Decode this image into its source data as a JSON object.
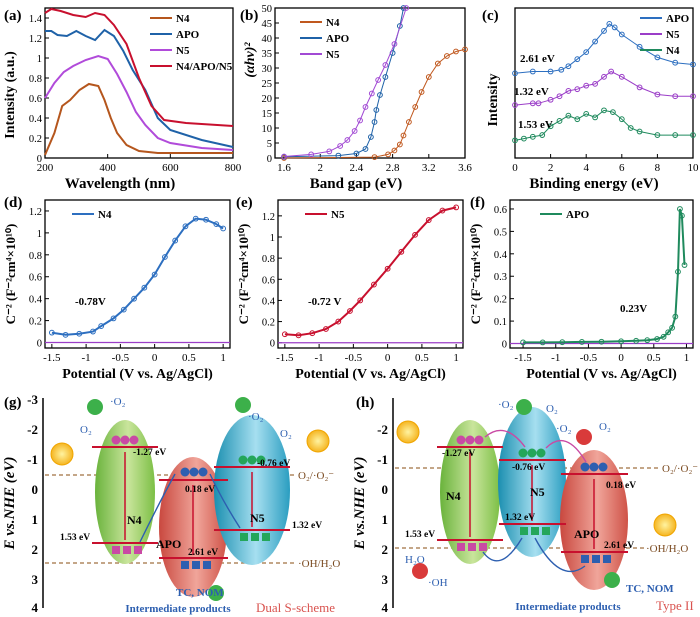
{
  "figure": {
    "panels": {
      "a": {
        "letter": "(a)",
        "xlabel": "Wavelength (nm)",
        "ylabel": "Intensity (a.u.)"
      },
      "b": {
        "letter": "(b)",
        "xlabel": "Band gap (eV)",
        "ylabel": "(αhν)²"
      },
      "c": {
        "letter": "(c)",
        "xlabel": "Binding energy (eV)",
        "ylabel": "Intensity",
        "annotations": [
          "2.61 eV",
          "1.32 eV",
          "1.53 eV"
        ]
      },
      "d": {
        "letter": "(d)",
        "annotation": "-0.78V"
      },
      "e": {
        "letter": "(e)",
        "annotation": "-0.72 V"
      },
      "f": {
        "letter": "(f)",
        "annotation": "0.23V"
      },
      "g": {
        "letter": "(g)",
        "scheme": "Dual S-scheme"
      },
      "h": {
        "letter": "(h)",
        "scheme": "Type II"
      }
    },
    "mott": {
      "ylabel": "C⁻² (F⁻²cm⁴×10¹⁰)",
      "xlabel": "Potential (V vs. Ag/AgCl)"
    },
    "energy": {
      "ylabel": "E vs.NHE (eV)",
      "o2_label": "O₂/·O₂⁻",
      "oh_label": "·OH/H₂O",
      "products": "Intermediate products",
      "pollutants": "TC, NOM"
    },
    "semis": {
      "n4": "N4",
      "n5": "N5",
      "apo": "APO"
    },
    "levels": {
      "n4_cb": "-1.27 eV",
      "n4_vb": "1.53 eV",
      "n5_cb": "-0.76 eV",
      "n5_vb": "1.32 eV",
      "apo_cb": "0.18 eV",
      "apo_vb": "2.61 eV"
    }
  },
  "chart_data": [
    {
      "panel": "a",
      "type": "line",
      "title": "",
      "xlabel": "Wavelength (nm)",
      "ylabel": "Intensity (a.u.)",
      "xlim": [
        200,
        800
      ],
      "ylim": [
        0,
        1.5
      ],
      "xticks": [
        200,
        400,
        600,
        800
      ],
      "yticks": [
        0.0,
        0.2,
        0.4,
        0.6,
        0.8,
        1.0,
        1.2,
        1.4
      ],
      "legend": [
        "N4",
        "APO",
        "N5",
        "N4/APO/N5"
      ],
      "series": [
        {
          "name": "N4",
          "color": "#b5561d",
          "x": [
            200,
            230,
            255,
            280,
            310,
            340,
            370,
            390,
            410,
            430,
            460,
            500,
            560,
            650,
            800
          ],
          "y": [
            0.03,
            0.25,
            0.52,
            0.58,
            0.68,
            0.74,
            0.72,
            0.58,
            0.4,
            0.25,
            0.13,
            0.07,
            0.05,
            0.05,
            0.05
          ]
        },
        {
          "name": "APO",
          "color": "#1f62a8",
          "x": [
            200,
            220,
            240,
            270,
            300,
            330,
            360,
            390,
            420,
            450,
            480,
            520,
            560,
            600,
            700,
            800
          ],
          "y": [
            1.27,
            1.27,
            1.23,
            1.22,
            1.27,
            1.22,
            1.18,
            1.28,
            1.22,
            1.07,
            0.88,
            0.68,
            0.4,
            0.28,
            0.18,
            0.11
          ]
        },
        {
          "name": "N5",
          "color": "#b14bda",
          "x": [
            200,
            230,
            260,
            290,
            330,
            370,
            400,
            430,
            460,
            490,
            520,
            560,
            600,
            700,
            800
          ],
          "y": [
            0.6,
            0.75,
            0.86,
            0.92,
            0.98,
            1.02,
            0.99,
            0.84,
            0.66,
            0.46,
            0.33,
            0.2,
            0.15,
            0.1,
            0.08
          ]
        },
        {
          "name": "N4/APO/N5",
          "color": "#c8102e",
          "x": [
            200,
            220,
            250,
            290,
            330,
            360,
            390,
            420,
            460,
            500,
            540,
            580,
            650,
            800
          ],
          "y": [
            1.45,
            1.49,
            1.47,
            1.43,
            1.41,
            1.45,
            1.43,
            1.33,
            1.14,
            0.8,
            0.52,
            0.38,
            0.35,
            0.32
          ]
        }
      ]
    },
    {
      "panel": "b",
      "type": "scatter",
      "xlabel": "Band gap (eV)",
      "ylabel": "(αhν)²",
      "xlim": [
        1.5,
        3.6
      ],
      "ylim": [
        0,
        50
      ],
      "xticks": [
        1.6,
        2.0,
        2.4,
        2.8,
        3.2,
        3.6
      ],
      "yticks": [
        0,
        5,
        10,
        15,
        20,
        25,
        30,
        35,
        40,
        45,
        50
      ],
      "legend": [
        "N4",
        "APO",
        "N5"
      ],
      "series": [
        {
          "name": "N4",
          "color": "#c0581e",
          "x": [
            1.6,
            2.6,
            2.75,
            2.82,
            2.88,
            2.92,
            2.98,
            3.05,
            3.12,
            3.2,
            3.3,
            3.4,
            3.5,
            3.6
          ],
          "y": [
            0,
            0.3,
            1.2,
            2.5,
            4.5,
            7.5,
            12,
            17,
            22,
            27,
            31.5,
            34,
            35.5,
            36.2
          ]
        },
        {
          "name": "APO",
          "color": "#1f62a8",
          "x": [
            1.6,
            2.2,
            2.4,
            2.5,
            2.56,
            2.6,
            2.62,
            2.66,
            2.72,
            2.8,
            2.88,
            2.92
          ],
          "y": [
            0.4,
            0.8,
            1.5,
            3,
            7,
            12,
            16,
            21,
            27,
            35,
            44,
            50
          ]
        },
        {
          "name": "N5",
          "color": "#a24ad4",
          "x": [
            1.6,
            1.9,
            2.1,
            2.22,
            2.3,
            2.38,
            2.44,
            2.5,
            2.57,
            2.64,
            2.72,
            2.82,
            2.95
          ],
          "y": [
            0.5,
            1.2,
            2.2,
            4,
            6,
            9,
            12.5,
            17,
            21.5,
            26,
            31,
            38,
            50
          ]
        }
      ]
    },
    {
      "panel": "c",
      "type": "scatter",
      "xlabel": "Binding energy (eV)",
      "ylabel": "Intensity",
      "xlim": [
        0,
        10
      ],
      "xticks": [
        0,
        2,
        4,
        6,
        8,
        10
      ],
      "legend": [
        "APO",
        "N5",
        "N4"
      ],
      "series": [
        {
          "name": "APO",
          "color": "#2d6fc0",
          "x": [
            0,
            1,
            2,
            2.6,
            3,
            3.5,
            4,
            4.5,
            5,
            5.3,
            5.6,
            6,
            7,
            8,
            9,
            10
          ],
          "y": [
            0.68,
            0.69,
            0.69,
            0.7,
            0.72,
            0.76,
            0.8,
            0.86,
            0.92,
            0.96,
            0.94,
            0.9,
            0.83,
            0.77,
            0.74,
            0.73
          ]
        },
        {
          "name": "N5",
          "color": "#9b3ec8",
          "x": [
            0,
            1,
            1.32,
            2,
            2.5,
            3,
            3.5,
            4,
            4.5,
            5,
            5.4,
            6,
            7,
            8,
            9,
            10
          ],
          "y": [
            0.5,
            0.51,
            0.51,
            0.53,
            0.55,
            0.58,
            0.59,
            0.61,
            0.62,
            0.66,
            0.69,
            0.66,
            0.6,
            0.56,
            0.55,
            0.55
          ]
        },
        {
          "name": "N4",
          "color": "#1f8a5d",
          "x": [
            0,
            0.5,
            1,
            1.53,
            2,
            2.5,
            3,
            3.5,
            4,
            4.5,
            5,
            5.5,
            6,
            6.5,
            7,
            8,
            9,
            10
          ],
          "y": [
            0.3,
            0.31,
            0.32,
            0.33,
            0.38,
            0.41,
            0.44,
            0.42,
            0.45,
            0.43,
            0.47,
            0.46,
            0.42,
            0.37,
            0.35,
            0.33,
            0.33,
            0.33
          ]
        }
      ]
    },
    {
      "panel": "d",
      "type": "line",
      "legend": [
        "N4"
      ],
      "xlabel": "Potential (V vs. Ag/AgCl)",
      "ylabel": "C⁻² (F⁻²cm⁴×10¹⁰)",
      "xlim": [
        -1.6,
        1.1
      ],
      "ylim": [
        -0.05,
        1.3
      ],
      "xticks": [
        -1.5,
        -1.0,
        -0.5,
        0.0,
        0.5,
        1.0
      ],
      "yticks": [
        0.0,
        0.2,
        0.4,
        0.6,
        0.8,
        1.0,
        1.2
      ],
      "series": [
        {
          "name": "N4",
          "color": "#2d6fc0",
          "x": [
            -1.5,
            -1.3,
            -1.1,
            -0.9,
            -0.78,
            -0.6,
            -0.45,
            -0.3,
            -0.15,
            0.0,
            0.15,
            0.3,
            0.45,
            0.6,
            0.75,
            0.9,
            1.0
          ],
          "y": [
            0.09,
            0.07,
            0.08,
            0.1,
            0.15,
            0.22,
            0.3,
            0.4,
            0.5,
            0.62,
            0.78,
            0.93,
            1.06,
            1.13,
            1.12,
            1.08,
            1.04
          ]
        }
      ]
    },
    {
      "panel": "e",
      "type": "line",
      "legend": [
        "N5"
      ],
      "xlabel": "Potential (V vs. Ag/AgCl)",
      "ylabel": "C⁻² (F⁻²cm⁴×10¹⁰)",
      "xlim": [
        -1.6,
        1.1
      ],
      "ylim": [
        -0.05,
        1.35
      ],
      "xticks": [
        -1.5,
        -1.0,
        -0.5,
        0.0,
        0.5,
        1.0
      ],
      "yticks": [
        0.0,
        0.2,
        0.4,
        0.6,
        0.8,
        1.0,
        1.2
      ],
      "series": [
        {
          "name": "N5",
          "color": "#c8102e",
          "x": [
            -1.5,
            -1.3,
            -1.1,
            -0.9,
            -0.72,
            -0.55,
            -0.4,
            -0.2,
            0.0,
            0.2,
            0.4,
            0.6,
            0.8,
            1.0
          ],
          "y": [
            0.08,
            0.07,
            0.09,
            0.13,
            0.2,
            0.3,
            0.4,
            0.55,
            0.7,
            0.86,
            1.02,
            1.16,
            1.25,
            1.28
          ]
        }
      ]
    },
    {
      "panel": "f",
      "type": "line",
      "legend": [
        "APO"
      ],
      "xlabel": "Potential (V vs. Ag/AgCl)",
      "ylabel": "C⁻² (F⁻²cm⁴×10¹⁰)",
      "xlim": [
        -1.7,
        1.1
      ],
      "ylim": [
        -0.02,
        0.64
      ],
      "xticks": [
        -1.5,
        -1.0,
        -0.5,
        0.0,
        0.5,
        1.0
      ],
      "yticks": [
        0.0,
        0.1,
        0.2,
        0.3,
        0.4,
        0.5,
        0.6
      ],
      "series": [
        {
          "name": "APO",
          "color": "#1f8a5d",
          "x": [
            -1.5,
            -1.2,
            -0.9,
            -0.6,
            -0.3,
            0.0,
            0.23,
            0.4,
            0.55,
            0.65,
            0.72,
            0.78,
            0.83,
            0.87,
            0.9,
            0.93,
            0.97
          ],
          "y": [
            0.005,
            0.005,
            0.006,
            0.007,
            0.008,
            0.01,
            0.012,
            0.015,
            0.02,
            0.03,
            0.05,
            0.07,
            0.12,
            0.32,
            0.6,
            0.57,
            0.35
          ]
        }
      ]
    }
  ]
}
